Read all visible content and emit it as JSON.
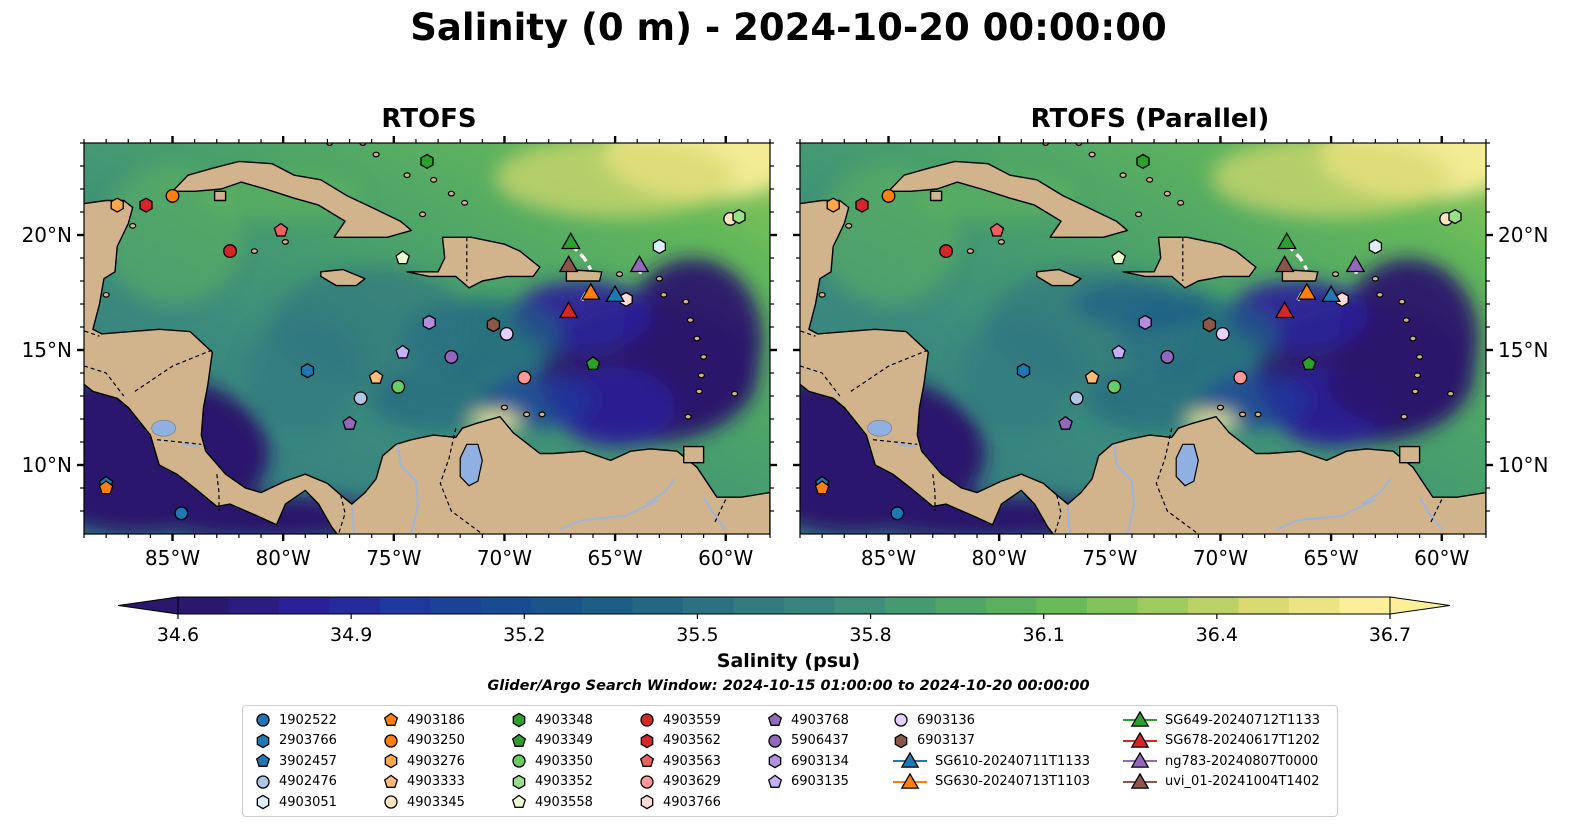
{
  "title": "Salinity (0 m) - 2024-10-20 00:00:00",
  "panels": [
    {
      "title": "RTOFS"
    },
    {
      "title": "RTOFS (Parallel)"
    }
  ],
  "axes": {
    "lon_ticks": [
      "85°W",
      "80°W",
      "75°W",
      "70°W",
      "65°W",
      "60°W"
    ],
    "lon_values": [
      -85,
      -80,
      -75,
      -70,
      -65,
      -60
    ],
    "lat_ticks": [
      "10°N",
      "15°N",
      "20°N"
    ],
    "lat_values": [
      10,
      15,
      20
    ],
    "lon_range": [
      -89,
      -58
    ],
    "lat_range": [
      7,
      24
    ]
  },
  "colorbar": {
    "label": "Salinity (psu)",
    "ticks": [
      "34.6",
      "34.9",
      "35.2",
      "35.5",
      "35.8",
      "36.1",
      "36.4",
      "36.7"
    ],
    "range": [
      34.6,
      36.7
    ],
    "colormap": "haline",
    "colors": [
      "#2a186c",
      "#2c2099",
      "#1e3a9d",
      "#164f8e",
      "#1f6184",
      "#2f7581",
      "#3b8b7e",
      "#4aa26a",
      "#64b85a",
      "#99ca5c",
      "#d7d96f",
      "#fdef9a"
    ],
    "land_color": "#d2b48c",
    "river_color": "#a0b4d8"
  },
  "search_window": "Glider/Argo Search Window: 2024-10-15 01:00:00 to 2024-10-20 00:00:00",
  "legend": [
    {
      "label": "1902522",
      "shape": "circle",
      "color": "#1f77b4"
    },
    {
      "label": "2903766",
      "shape": "hexagon",
      "color": "#1f77b4"
    },
    {
      "label": "3902457",
      "shape": "pentagon",
      "color": "#1f77b4"
    },
    {
      "label": "4902476",
      "shape": "circle",
      "color": "#aec7e8"
    },
    {
      "label": "4903051",
      "shape": "hexagon",
      "color": "#ddeeff"
    },
    {
      "label": "4903186",
      "shape": "pentagon",
      "color": "#ff7f0e"
    },
    {
      "label": "4903250",
      "shape": "circle",
      "color": "#ff7f0e"
    },
    {
      "label": "4903276",
      "shape": "hexagon",
      "color": "#ffa64d"
    },
    {
      "label": "4903333",
      "shape": "pentagon",
      "color": "#ffbb78"
    },
    {
      "label": "4903345",
      "shape": "circle",
      "color": "#ffe4c4"
    },
    {
      "label": "4903348",
      "shape": "hexagon",
      "color": "#2ca02c"
    },
    {
      "label": "4903349",
      "shape": "pentagon",
      "color": "#2ca02c"
    },
    {
      "label": "4903350",
      "shape": "circle",
      "color": "#66cc66"
    },
    {
      "label": "4903352",
      "shape": "hexagon",
      "color": "#98df8a"
    },
    {
      "label": "4903558",
      "shape": "pentagon",
      "color": "#eaffd0"
    },
    {
      "label": "4903559",
      "shape": "circle",
      "color": "#d62728"
    },
    {
      "label": "4903562",
      "shape": "hexagon",
      "color": "#d62728"
    },
    {
      "label": "4903563",
      "shape": "pentagon",
      "color": "#f06060"
    },
    {
      "label": "4903629",
      "shape": "circle",
      "color": "#ff9896"
    },
    {
      "label": "4903766",
      "shape": "hexagon",
      "color": "#ffd8d8"
    },
    {
      "label": "4903768",
      "shape": "pentagon",
      "color": "#9467bd"
    },
    {
      "label": "5906437",
      "shape": "circle",
      "color": "#9467bd"
    },
    {
      "label": "6903134",
      "shape": "hexagon",
      "color": "#b38ee0"
    },
    {
      "label": "6903135",
      "shape": "pentagon",
      "color": "#c5b0ff"
    },
    {
      "label": "6903136",
      "shape": "circle",
      "color": "#e5d0ff"
    },
    {
      "label": "6903137",
      "shape": "hexagon",
      "color": "#8c564b"
    },
    {
      "label": "SG610-20240711T1133",
      "shape": "triangle",
      "color": "#1f77b4"
    },
    {
      "label": "SG630-20240713T1103",
      "shape": "triangle",
      "color": "#ff7f0e"
    },
    {
      "label": "SG649-20240712T1133",
      "shape": "triangle",
      "color": "#2ca02c"
    },
    {
      "label": "SG678-20240617T1202",
      "shape": "triangle",
      "color": "#d62728"
    },
    {
      "label": "ng783-20240807T0000",
      "shape": "triangle",
      "color": "#9467bd"
    },
    {
      "label": "uvi_01-20241004T1402",
      "shape": "triangle",
      "color": "#8c564b"
    }
  ],
  "markers": [
    {
      "id": "1902522",
      "lon": -84.6,
      "lat": 7.9
    },
    {
      "id": "2903766",
      "lon": -78.9,
      "lat": 14.1
    },
    {
      "id": "3902457",
      "lon": -88.0,
      "lat": 9.2
    },
    {
      "id": "4902476",
      "lon": -76.5,
      "lat": 12.9
    },
    {
      "id": "4903051",
      "lon": -63.0,
      "lat": 19.5
    },
    {
      "id": "4903186",
      "lon": -88.0,
      "lat": 9.0
    },
    {
      "id": "4903250",
      "lon": -85.0,
      "lat": 21.7
    },
    {
      "id": "4903276",
      "lon": -87.5,
      "lat": 21.3
    },
    {
      "id": "4903333",
      "lon": -75.8,
      "lat": 13.8
    },
    {
      "id": "4903345",
      "lon": -59.8,
      "lat": 20.7
    },
    {
      "id": "4903348",
      "lon": -73.5,
      "lat": 23.2
    },
    {
      "id": "4903349",
      "lon": -66.0,
      "lat": 14.4
    },
    {
      "id": "4903350",
      "lon": -74.8,
      "lat": 13.4
    },
    {
      "id": "4903352",
      "lon": -59.4,
      "lat": 20.8
    },
    {
      "id": "4903558",
      "lon": -74.6,
      "lat": 19.0
    },
    {
      "id": "4903559",
      "lon": -82.4,
      "lat": 19.3
    },
    {
      "id": "4903562",
      "lon": -86.2,
      "lat": 21.3
    },
    {
      "id": "4903563",
      "lon": -80.1,
      "lat": 20.2
    },
    {
      "id": "4903629",
      "lon": -69.1,
      "lat": 13.8
    },
    {
      "id": "4903766",
      "lon": -64.5,
      "lat": 17.2
    },
    {
      "id": "4903768",
      "lon": -77.0,
      "lat": 11.8
    },
    {
      "id": "5906437",
      "lon": -72.4,
      "lat": 14.7
    },
    {
      "id": "6903134",
      "lon": -73.4,
      "lat": 16.2
    },
    {
      "id": "6903135",
      "lon": -74.6,
      "lat": 14.9
    },
    {
      "id": "6903136",
      "lon": -69.9,
      "lat": 15.7
    },
    {
      "id": "6903137",
      "lon": -70.5,
      "lat": 16.1
    },
    {
      "id": "SG610-20240711T1133",
      "lon": -65.0,
      "lat": 17.4
    },
    {
      "id": "SG630-20240713T1103",
      "lon": -66.1,
      "lat": 17.5
    },
    {
      "id": "SG649-20240712T1133",
      "lon": -67.0,
      "lat": 19.7
    },
    {
      "id": "SG678-20240617T1202",
      "lon": -67.1,
      "lat": 16.7
    },
    {
      "id": "ng783-20240807T0000",
      "lon": -63.9,
      "lat": 18.7
    },
    {
      "id": "uvi_01-20241004T1402",
      "lon": -67.1,
      "lat": 18.7
    }
  ]
}
